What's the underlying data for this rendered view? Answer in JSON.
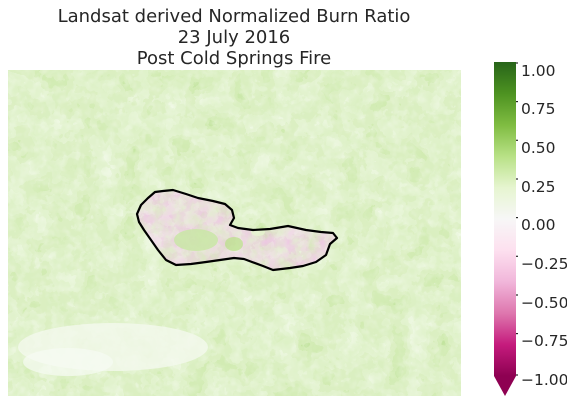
{
  "title": {
    "line1": "Landsat derived Normalized Burn Ratio",
    "line2": "23 July 2016",
    "line3": "Post Cold Springs Fire"
  },
  "colorbar": {
    "ticks": [
      "1.00",
      "0.75",
      "0.50",
      "0.25",
      "0.00",
      "−0.25",
      "−0.50",
      "−0.75",
      "−1.00"
    ],
    "range": [
      -1.0,
      1.0
    ],
    "extend": "min",
    "colormap": "PiYG",
    "colors": [
      "#8e0152",
      "#c51b7d",
      "#de77ae",
      "#f1b6da",
      "#fde0ef",
      "#f7f7f7",
      "#e6f5d0",
      "#b8e186",
      "#7fbc41",
      "#4d9221",
      "#276419"
    ]
  },
  "map": {
    "fire_perimeter_color": "#000000"
  }
}
